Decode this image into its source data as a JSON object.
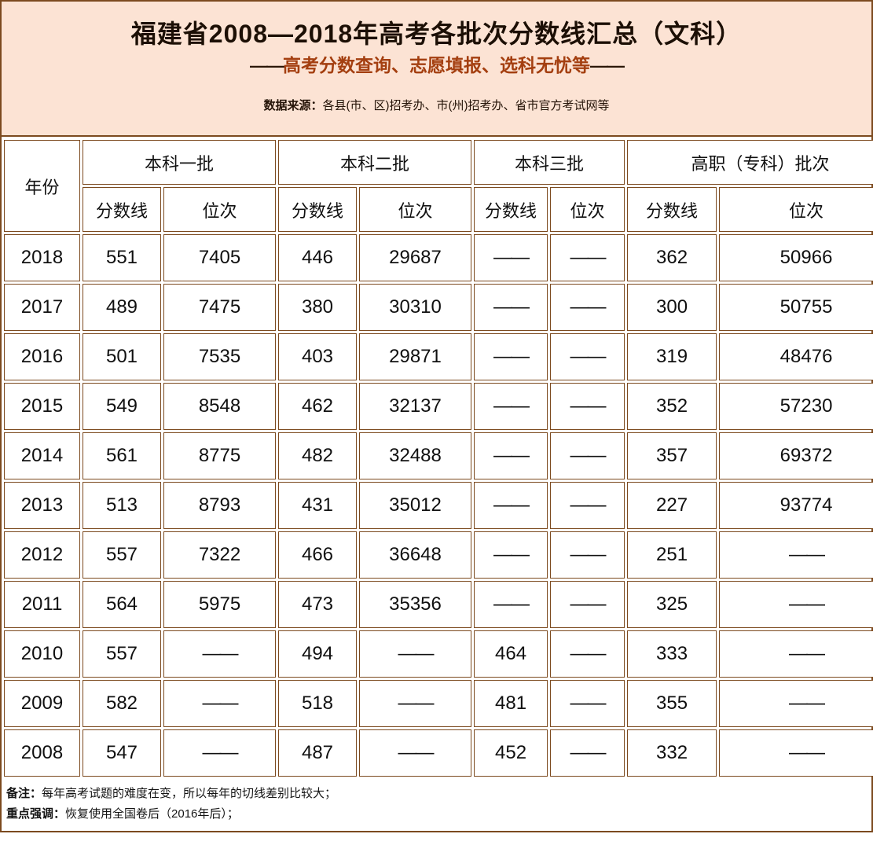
{
  "header": {
    "title": "福建省2008—2018年高考各批次分数线汇总（文科）",
    "subtitle_dash": "——",
    "subtitle_text": "高考分数查询、志愿填报、选科无忧等",
    "source_label": "数据来源：",
    "source_text": "各县(市、区)招考办、市(州)招考办、省市官方考试网等"
  },
  "chart_data": {
    "type": "table",
    "year_header": "年份",
    "groups": [
      {
        "label": "本科一批",
        "sub": [
          "分数线",
          "位次"
        ]
      },
      {
        "label": "本科二批",
        "sub": [
          "分数线",
          "位次"
        ]
      },
      {
        "label": "本科三批",
        "sub": [
          "分数线",
          "位次"
        ]
      },
      {
        "label": "高职（专科）批次",
        "sub": [
          "分数线",
          "位次"
        ]
      }
    ],
    "no_data_marker": "——",
    "rows": [
      {
        "year": "2018",
        "values": [
          "551",
          "7405",
          "446",
          "29687",
          "——",
          "——",
          "362",
          "50966"
        ]
      },
      {
        "year": "2017",
        "values": [
          "489",
          "7475",
          "380",
          "30310",
          "——",
          "——",
          "300",
          "50755"
        ]
      },
      {
        "year": "2016",
        "values": [
          "501",
          "7535",
          "403",
          "29871",
          "——",
          "——",
          "319",
          "48476"
        ]
      },
      {
        "year": "2015",
        "values": [
          "549",
          "8548",
          "462",
          "32137",
          "——",
          "——",
          "352",
          "57230"
        ]
      },
      {
        "year": "2014",
        "values": [
          "561",
          "8775",
          "482",
          "32488",
          "——",
          "——",
          "357",
          "69372"
        ]
      },
      {
        "year": "2013",
        "values": [
          "513",
          "8793",
          "431",
          "35012",
          "——",
          "——",
          "227",
          "93774"
        ]
      },
      {
        "year": "2012",
        "values": [
          "557",
          "7322",
          "466",
          "36648",
          "——",
          "——",
          "251",
          "——"
        ]
      },
      {
        "year": "2011",
        "values": [
          "564",
          "5975",
          "473",
          "35356",
          "——",
          "——",
          "325",
          "——"
        ]
      },
      {
        "year": "2010",
        "values": [
          "557",
          "——",
          "494",
          "——",
          "464",
          "——",
          "333",
          "——"
        ]
      },
      {
        "year": "2009",
        "values": [
          "582",
          "——",
          "518",
          "——",
          "481",
          "——",
          "355",
          "——"
        ]
      },
      {
        "year": "2008",
        "values": [
          "547",
          "——",
          "487",
          "——",
          "452",
          "——",
          "332",
          "——"
        ]
      }
    ]
  },
  "notes": [
    {
      "label": "备注：",
      "text": "每年高考试题的难度在变，所以每年的切线差别比较大；"
    },
    {
      "label": "重点强调：",
      "text": "恢复使用全国卷后（2016年后）；"
    }
  ],
  "colors": {
    "border": "#7c4a1f",
    "header_bg": "#fce3d4",
    "title_color": "#1c0f05",
    "subtitle_color": "#a43f10",
    "dash_color": "#2b1708"
  }
}
